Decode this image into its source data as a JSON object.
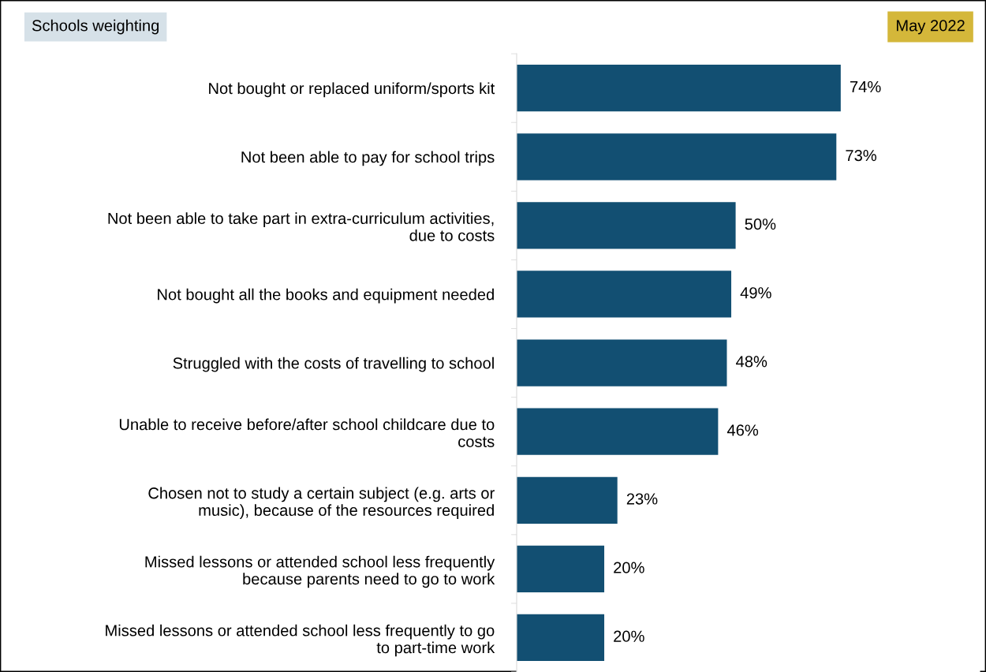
{
  "chart_data": {
    "type": "bar",
    "orientation": "horizontal",
    "title": "Schools weighting",
    "subtitle": "May 2022",
    "categories": [
      "Not bought or replaced uniform/sports kit",
      "Not been able to pay for school trips",
      "Not been able to take part in extra-curriculum activities,\ndue to costs",
      "Not bought all the books and equipment needed",
      "Struggled with the costs of travelling to school",
      "Unable to receive before/after school childcare due to\ncosts",
      "Chosen not to study a certain subject (e.g. arts or\nmusic), because of the resources required",
      "Missed lessons or attended school less frequently\nbecause parents need to go to work",
      "Missed lessons or attended school less frequently to go\nto part-time work"
    ],
    "values": [
      74,
      73,
      50,
      49,
      48,
      46,
      23,
      20,
      20
    ],
    "value_labels": [
      "74%",
      "73%",
      "50%",
      "49%",
      "48%",
      "46%",
      "23%",
      "20%",
      "20%"
    ],
    "color": "#124f72",
    "grid": false,
    "legend": false
  }
}
